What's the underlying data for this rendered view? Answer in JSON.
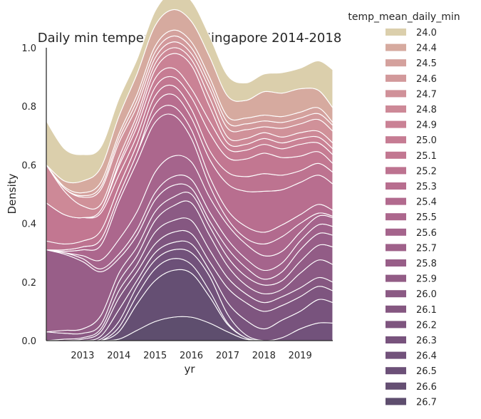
{
  "chart_data": {
    "type": "area",
    "title": "Daily min temperature in Singapore 2014-2018",
    "xlabel": "yr",
    "ylabel": "Density",
    "xlim": [
      2012.0,
      2019.9
    ],
    "ylim": [
      0,
      1
    ],
    "xticks": [
      "2013",
      "2014",
      "2015",
      "2016",
      "2017",
      "2018",
      "2019"
    ],
    "yticks": [
      "0.0",
      "0.2",
      "0.4",
      "0.6",
      "0.8",
      "1.0"
    ],
    "legend_title": "temp_mean_daily_min",
    "legend_position": "right",
    "grid": false,
    "x": [
      2012.0,
      2012.5,
      2013.0,
      2013.5,
      2014.0,
      2014.5,
      2015.0,
      2015.5,
      2016.0,
      2016.5,
      2017.0,
      2017.5,
      2018.0,
      2018.5,
      2019.0,
      2019.5,
      2019.9
    ],
    "series": [
      {
        "name": "26.7",
        "color": "#5e4e6e",
        "values": [
          0.0,
          0.0,
          0.0,
          0.0,
          0.005,
          0.035,
          0.065,
          0.08,
          0.08,
          0.06,
          0.03,
          0.005,
          0.0,
          0.0,
          0.0,
          0.0,
          0.0
        ]
      },
      {
        "name": "26.6",
        "color": "#654f73",
        "values": [
          0.0,
          0.0,
          0.0,
          0.0,
          0.025,
          0.09,
          0.14,
          0.16,
          0.15,
          0.09,
          0.025,
          0.005,
          0.0,
          0.0,
          0.0,
          0.0,
          0.0
        ]
      },
      {
        "name": "26.5",
        "color": "#6c5078",
        "values": [
          0.0,
          0.0,
          0.0,
          0.0,
          0.015,
          0.03,
          0.04,
          0.04,
          0.03,
          0.02,
          0.005,
          0.0,
          0.0,
          0.0,
          0.0,
          0.0,
          0.0
        ]
      },
      {
        "name": "26.4",
        "color": "#72527b",
        "values": [
          0.0,
          0.0,
          0.0,
          0.005,
          0.02,
          0.03,
          0.03,
          0.03,
          0.04,
          0.05,
          0.03,
          0.01,
          0.0,
          0.01,
          0.04,
          0.06,
          0.06
        ]
      },
      {
        "name": "26.3",
        "color": "#78537d",
        "values": [
          0.0,
          0.0,
          0.0,
          0.01,
          0.04,
          0.02,
          0.025,
          0.025,
          0.03,
          0.02,
          0.04,
          0.05,
          0.04,
          0.06,
          0.06,
          0.08,
          0.07
        ]
      },
      {
        "name": "26.2",
        "color": "#7e557f",
        "values": [
          0.0,
          0.0,
          0.005,
          0.015,
          0.04,
          0.03,
          0.03,
          0.035,
          0.035,
          0.03,
          0.05,
          0.06,
          0.06,
          0.05,
          0.05,
          0.045,
          0.04
        ]
      },
      {
        "name": "26.1",
        "color": "#855781",
        "values": [
          0.0,
          0.005,
          0.005,
          0.01,
          0.025,
          0.025,
          0.04,
          0.04,
          0.045,
          0.04,
          0.035,
          0.03,
          0.03,
          0.03,
          0.03,
          0.03,
          0.03
        ]
      },
      {
        "name": "26.0",
        "color": "#8b5a84",
        "values": [
          0.03,
          0.02,
          0.015,
          0.015,
          0.03,
          0.03,
          0.04,
          0.05,
          0.06,
          0.05,
          0.04,
          0.03,
          0.03,
          0.025,
          0.05,
          0.06,
          0.06
        ]
      },
      {
        "name": "25.9",
        "color": "#925c86",
        "values": [
          0.0,
          0.01,
          0.015,
          0.03,
          0.03,
          0.03,
          0.03,
          0.03,
          0.03,
          0.03,
          0.03,
          0.03,
          0.03,
          0.03,
          0.04,
          0.05,
          0.06
        ]
      },
      {
        "name": "25.8",
        "color": "#985e88",
        "values": [
          0.28,
          0.26,
          0.23,
          0.15,
          0.05,
          0.04,
          0.04,
          0.04,
          0.02,
          0.02,
          0.03,
          0.03,
          0.02,
          0.03,
          0.04,
          0.04,
          0.04
        ]
      },
      {
        "name": "25.7",
        "color": "#9f618a",
        "values": [
          0.0,
          0.005,
          0.01,
          0.01,
          0.015,
          0.02,
          0.025,
          0.03,
          0.03,
          0.03,
          0.03,
          0.03,
          0.03,
          0.03,
          0.03,
          0.03,
          0.03
        ]
      },
      {
        "name": "25.6",
        "color": "#a5648c",
        "values": [
          0.0,
          0.0,
          0.01,
          0.03,
          0.05,
          0.06,
          0.07,
          0.07,
          0.06,
          0.05,
          0.05,
          0.05,
          0.05,
          0.04,
          0.03,
          0.03,
          0.03
        ]
      },
      {
        "name": "25.5",
        "color": "#ac678d",
        "values": [
          0.0,
          0.005,
          0.02,
          0.05,
          0.13,
          0.17,
          0.17,
          0.14,
          0.08,
          0.04,
          0.02,
          0.02,
          0.04,
          0.05,
          0.03,
          0.01,
          0.005
        ]
      },
      {
        "name": "25.4",
        "color": "#b26a8e",
        "values": [
          0.0,
          0.005,
          0.01,
          0.02,
          0.02,
          0.03,
          0.03,
          0.03,
          0.03,
          0.03,
          0.03,
          0.04,
          0.04,
          0.04,
          0.03,
          0.03,
          0.02
        ]
      },
      {
        "name": "25.3",
        "color": "#b86e8f",
        "values": [
          0.0,
          0.0,
          0.0,
          0.0,
          0.0,
          0.0,
          0.03,
          0.04,
          0.04,
          0.06,
          0.09,
          0.12,
          0.14,
          0.12,
          0.11,
          0.1,
          0.09
        ]
      },
      {
        "name": "25.2",
        "color": "#bd7390",
        "values": [
          0.03,
          0.02,
          0.02,
          0.03,
          0.03,
          0.03,
          0.03,
          0.03,
          0.03,
          0.03,
          0.04,
          0.05,
          0.06,
          0.05,
          0.04,
          0.04,
          0.04
        ]
      },
      {
        "name": "25.1",
        "color": "#c27791",
        "values": [
          0.13,
          0.1,
          0.08,
          0.06,
          0.04,
          0.03,
          0.03,
          0.03,
          0.04,
          0.06,
          0.05,
          0.06,
          0.07,
          0.06,
          0.05,
          0.04,
          0.03
        ]
      },
      {
        "name": "25.0",
        "color": "#c67c93",
        "values": [
          0.0,
          0.0,
          0.0,
          0.01,
          0.03,
          0.03,
          0.03,
          0.03,
          0.03,
          0.04,
          0.03,
          0.03,
          0.03,
          0.03,
          0.04,
          0.03,
          0.03
        ]
      },
      {
        "name": "24.9",
        "color": "#ca8295",
        "values": [
          0.0,
          0.0,
          0.0,
          0.0,
          0.01,
          0.02,
          0.03,
          0.05,
          0.08,
          0.05,
          0.02,
          0.02,
          0.02,
          0.02,
          0.02,
          0.02,
          0.02
        ]
      },
      {
        "name": "24.8",
        "color": "#cd8997",
        "values": [
          0.13,
          0.08,
          0.04,
          0.02,
          0.02,
          0.02,
          0.02,
          0.02,
          0.02,
          0.03,
          0.02,
          0.02,
          0.02,
          0.02,
          0.02,
          0.02,
          0.02
        ]
      },
      {
        "name": "24.7",
        "color": "#d09199",
        "values": [
          0.0,
          0.01,
          0.03,
          0.05,
          0.05,
          0.03,
          0.02,
          0.02,
          0.02,
          0.03,
          0.03,
          0.03,
          0.02,
          0.03,
          0.03,
          0.04,
          0.04
        ]
      },
      {
        "name": "24.6",
        "color": "#d2999b",
        "values": [
          0.0,
          0.0,
          0.005,
          0.01,
          0.015,
          0.02,
          0.02,
          0.02,
          0.02,
          0.02,
          0.02,
          0.02,
          0.02,
          0.02,
          0.02,
          0.02,
          0.02
        ]
      },
      {
        "name": "24.5",
        "color": "#d4a19d",
        "values": [
          0.0,
          0.005,
          0.01,
          0.015,
          0.015,
          0.02,
          0.02,
          0.02,
          0.02,
          0.02,
          0.02,
          0.02,
          0.02,
          0.02,
          0.02,
          0.02,
          0.01
        ]
      },
      {
        "name": "24.4",
        "color": "#d6aa9f",
        "values": [
          0.0,
          0.02,
          0.04,
          0.05,
          0.06,
          0.07,
          0.07,
          0.07,
          0.07,
          0.07,
          0.07,
          0.06,
          0.08,
          0.08,
          0.08,
          0.06,
          0.05
        ]
      },
      {
        "name": "24.0",
        "color": "#dbcfac",
        "values": [
          0.15,
          0.11,
          0.09,
          0.07,
          0.06,
          0.05,
          0.05,
          0.06,
          0.07,
          0.07,
          0.07,
          0.06,
          0.06,
          0.07,
          0.07,
          0.1,
          0.13
        ]
      }
    ],
    "legend": [
      {
        "label": "24.0",
        "color": "#dbcfac"
      },
      {
        "label": "24.4",
        "color": "#d6aa9f"
      },
      {
        "label": "24.5",
        "color": "#d4a19d"
      },
      {
        "label": "24.6",
        "color": "#d2999b"
      },
      {
        "label": "24.7",
        "color": "#d09199"
      },
      {
        "label": "24.8",
        "color": "#cd8997"
      },
      {
        "label": "24.9",
        "color": "#ca8295"
      },
      {
        "label": "25.0",
        "color": "#c67c93"
      },
      {
        "label": "25.1",
        "color": "#c27791"
      },
      {
        "label": "25.2",
        "color": "#bd7390"
      },
      {
        "label": "25.3",
        "color": "#b86e8f"
      },
      {
        "label": "25.4",
        "color": "#b26a8e"
      },
      {
        "label": "25.5",
        "color": "#ac678d"
      },
      {
        "label": "25.6",
        "color": "#a5648c"
      },
      {
        "label": "25.7",
        "color": "#9f618a"
      },
      {
        "label": "25.8",
        "color": "#985e88"
      },
      {
        "label": "25.9",
        "color": "#925c86"
      },
      {
        "label": "26.0",
        "color": "#8b5a84"
      },
      {
        "label": "26.1",
        "color": "#855781"
      },
      {
        "label": "26.2",
        "color": "#7e557f"
      },
      {
        "label": "26.3",
        "color": "#78537d"
      },
      {
        "label": "26.4",
        "color": "#72527b"
      },
      {
        "label": "26.5",
        "color": "#6c5078"
      },
      {
        "label": "26.6",
        "color": "#654f73"
      },
      {
        "label": "26.7",
        "color": "#5e4e6e"
      }
    ]
  }
}
